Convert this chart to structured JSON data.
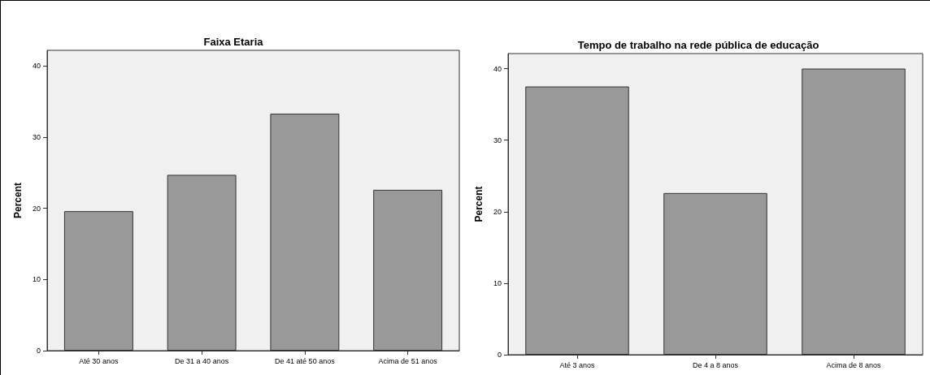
{
  "chart_data": [
    {
      "type": "bar",
      "title": "Faixa Etaria",
      "ylabel": "Percent",
      "categories": [
        "Até 30 anos",
        "De 31 a 40 anos",
        "De 41 até 50 anos",
        "Acima de 51 anos"
      ],
      "values": [
        19.6,
        24.7,
        33.3,
        22.6
      ],
      "color": "#999999",
      "ylim": [
        0,
        42.2
      ],
      "yticks": [
        0,
        10,
        20,
        30,
        40
      ],
      "grid": false
    },
    {
      "type": "bar",
      "title": "Tempo de trabalho na rede pública de educação",
      "ylabel": "Percent",
      "categories": [
        "Até 3 anos",
        "De 4 a 8 anos",
        "Acima de 8 anos"
      ],
      "values": [
        37.5,
        22.6,
        40.0
      ],
      "color": "#999999",
      "ylim": [
        0,
        42.1
      ],
      "yticks": [
        0,
        10,
        20,
        30,
        40
      ],
      "grid": false
    }
  ]
}
